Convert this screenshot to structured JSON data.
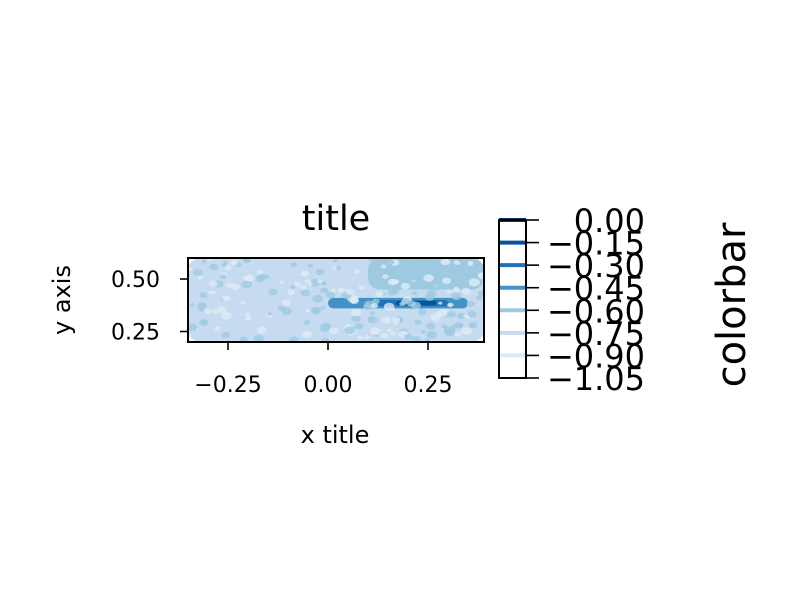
{
  "chart_data": {
    "type": "contour",
    "title": "title",
    "xlabel": "x title",
    "ylabel": "y axis",
    "xlim": [
      -0.35,
      0.39
    ],
    "ylim": [
      0.2,
      0.6
    ],
    "x_ticks": [
      -0.25,
      0.0,
      0.25
    ],
    "x_tick_labels": [
      "−0.25",
      "0.00",
      "0.25"
    ],
    "y_ticks": [
      0.25,
      0.5
    ],
    "y_tick_labels": [
      "0.25",
      "0.50"
    ],
    "grid": false,
    "colormap": "Blues",
    "colorbar": {
      "label": "colorbar",
      "levels": [
        0.0,
        -0.15,
        -0.3,
        -0.45,
        -0.6,
        -0.75,
        -0.9,
        -1.05
      ],
      "tick_labels": [
        "0.00",
        "−0.15",
        "−0.30",
        "−0.45",
        "−0.60",
        "−0.75",
        "−0.90",
        "−1.05"
      ],
      "level_colors": [
        "#08306b",
        "#08519c",
        "#2171b5",
        "#4292c6",
        "#9ecae1",
        "#c6dbef",
        "#deebf7",
        "#ffffff"
      ]
    },
    "regions": [
      {
        "level": -0.75,
        "x": [
          -0.35,
          0.39
        ],
        "y": [
          0.2,
          0.6
        ]
      },
      {
        "level": -0.6,
        "x": [
          0.1,
          0.39
        ],
        "y": [
          0.45,
          0.6
        ]
      },
      {
        "level": -0.45,
        "x": [
          0.0,
          0.35
        ],
        "y": [
          0.36,
          0.41
        ]
      },
      {
        "level": -0.3,
        "x": [
          0.1,
          0.3
        ],
        "y": [
          0.37,
          0.4
        ]
      },
      {
        "level": -0.15,
        "x": [
          0.17,
          0.27
        ],
        "y": [
          0.375,
          0.395
        ]
      }
    ]
  }
}
